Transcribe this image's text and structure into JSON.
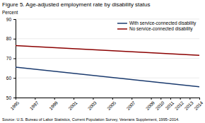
{
  "chart_data": {
    "type": "line",
    "title": "Figure 5. Age-adjusted employment rate by disability status",
    "ylabel": "Percent",
    "source": "Source: U.S. Bureau of Labor Statistics, Current Population Survey, Veterans Supplement, 1995–2014.",
    "x": [
      1995,
      2014
    ],
    "series": [
      {
        "name": "With service-connected disability",
        "color": "#1a3a6e",
        "values": [
          65.5,
          55.5
        ]
      },
      {
        "name": "No service-connected disability",
        "color": "#8b0000",
        "values": [
          76.5,
          71.5
        ]
      }
    ],
    "xlim": [
      1995,
      2014
    ],
    "ylim": [
      50,
      90
    ],
    "xticks": [
      1995,
      1997,
      1999,
      2001,
      2003,
      2005,
      2007,
      2009,
      2010,
      2011,
      2012,
      2013,
      2014
    ],
    "yticks": [
      50,
      60,
      70,
      80,
      90
    ],
    "grid": true,
    "legend": "upper right"
  }
}
